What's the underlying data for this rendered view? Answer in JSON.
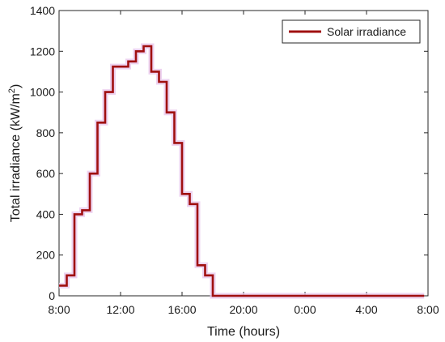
{
  "chart_data": {
    "type": "line",
    "step": true,
    "xlabel": "Time (hours)",
    "ylabel_main": "Total irradiance (kW/m",
    "ylabel_sup": "2",
    "ylabel_close": ")",
    "xlim": [
      8,
      32
    ],
    "ylim": [
      0,
      1400
    ],
    "xticks": [
      8,
      12,
      16,
      20,
      24,
      28,
      32
    ],
    "xtick_labels": [
      "8:00",
      "12:00",
      "16:00",
      "20:00",
      "0:00",
      "4:00",
      "8:00"
    ],
    "yticks": [
      0,
      200,
      400,
      600,
      800,
      1000,
      1200,
      1400
    ],
    "ytick_labels": [
      "0",
      "200",
      "400",
      "600",
      "800",
      "1000",
      "1200",
      "1400"
    ],
    "grid": false,
    "legend_position": "top-right",
    "series": [
      {
        "name": "Solar irradiance",
        "color": "#a01010",
        "x": [
          8.25,
          8.75,
          9.25,
          9.75,
          10.25,
          10.75,
          11.25,
          11.75,
          12.25,
          12.75,
          13.25,
          13.75,
          14.25,
          14.75,
          15.25,
          15.75,
          16.25,
          16.75,
          17.25,
          17.75,
          18.25,
          31.75
        ],
        "values": [
          50,
          100,
          400,
          420,
          600,
          850,
          1000,
          1125,
          1125,
          1150,
          1200,
          1225,
          1100,
          1050,
          900,
          750,
          500,
          450,
          150,
          100,
          0,
          0
        ]
      }
    ]
  }
}
